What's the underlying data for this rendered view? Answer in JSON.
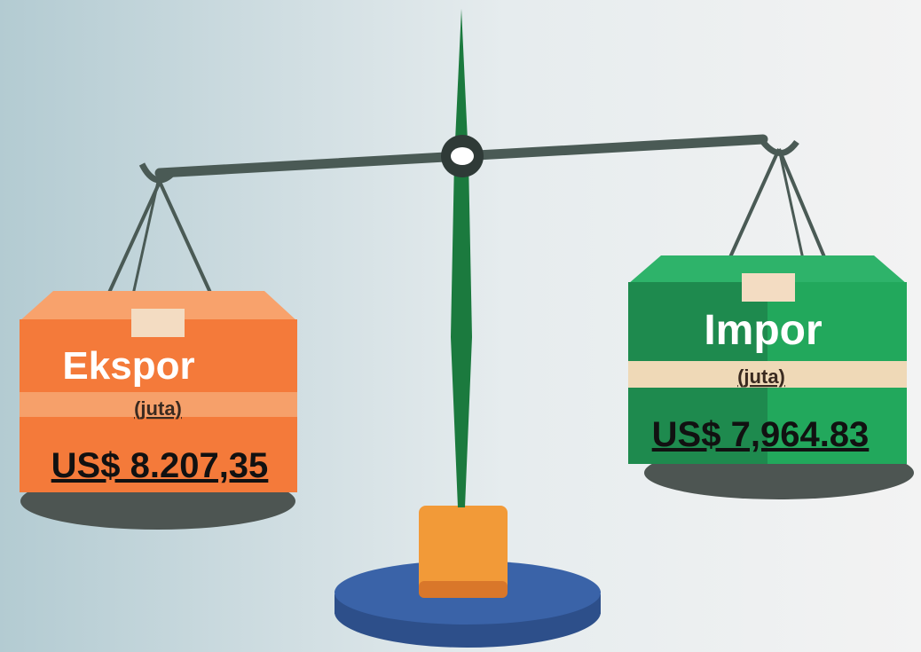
{
  "left_box": {
    "title": "Ekspor",
    "unit": "(juta)",
    "value": "US$ 8.207,35"
  },
  "right_box": {
    "title": "Impor",
    "unit": "(juta)",
    "value": "US$ 7,964.83"
  }
}
